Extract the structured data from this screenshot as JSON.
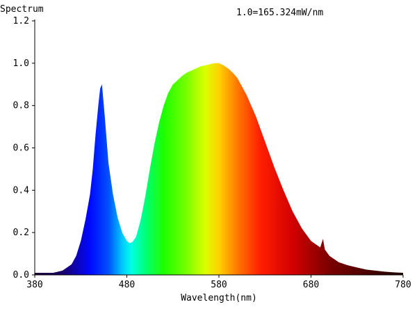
{
  "chart_data": {
    "type": "area",
    "ylabel": "Spectrum",
    "xlabel": "Wavelength(nm)",
    "annotation": "1.0=165.324mW/nm",
    "xlim": [
      380,
      780
    ],
    "ylim": [
      0,
      1.2
    ],
    "x_ticks": [
      "380",
      "480",
      "580",
      "680",
      "780"
    ],
    "y_ticks": [
      "0.0",
      "0.2",
      "0.4",
      "0.6",
      "0.8",
      "1.0",
      "1.2"
    ],
    "x_tick_values": [
      380,
      480,
      580,
      680,
      780
    ],
    "y_tick_values": [
      0,
      0.2,
      0.4,
      0.6,
      0.8,
      1.0,
      1.2
    ],
    "fill": "visible-spectrum rainbow gradient",
    "series": [
      {
        "x": [
          380,
          400,
          410,
          420,
          425,
          430,
          435,
          440,
          443,
          446,
          449,
          451,
          453,
          456,
          460,
          465,
          470,
          475,
          480,
          483,
          486,
          490,
          495,
          500,
          505,
          510,
          515,
          520,
          525,
          530,
          535,
          540,
          545,
          550,
          555,
          560,
          565,
          570,
          575,
          580,
          585,
          590,
          595,
          600,
          610,
          620,
          630,
          640,
          650,
          660,
          670,
          680,
          690,
          693,
          695,
          700,
          710,
          720,
          730,
          740,
          750,
          760,
          770,
          780
        ],
        "y": [
          0.01,
          0.01,
          0.02,
          0.05,
          0.09,
          0.16,
          0.26,
          0.38,
          0.5,
          0.66,
          0.8,
          0.88,
          0.9,
          0.75,
          0.53,
          0.38,
          0.27,
          0.2,
          0.16,
          0.15,
          0.155,
          0.18,
          0.26,
          0.37,
          0.5,
          0.62,
          0.72,
          0.8,
          0.86,
          0.9,
          0.92,
          0.94,
          0.955,
          0.965,
          0.975,
          0.985,
          0.99,
          0.995,
          1.0,
          1.0,
          0.99,
          0.975,
          0.955,
          0.93,
          0.85,
          0.75,
          0.63,
          0.51,
          0.4,
          0.3,
          0.22,
          0.16,
          0.13,
          0.17,
          0.12,
          0.09,
          0.06,
          0.045,
          0.035,
          0.025,
          0.02,
          0.015,
          0.012,
          0.01
        ]
      }
    ],
    "spectrum_colors": [
      {
        "wl": 380,
        "color": "#1c0038"
      },
      {
        "wl": 410,
        "color": "#1a0066"
      },
      {
        "wl": 440,
        "color": "#0008ff"
      },
      {
        "wl": 460,
        "color": "#0050ff"
      },
      {
        "wl": 475,
        "color": "#00c8ff"
      },
      {
        "wl": 485,
        "color": "#00ffe6"
      },
      {
        "wl": 500,
        "color": "#00ff78"
      },
      {
        "wl": 520,
        "color": "#1eff00"
      },
      {
        "wl": 545,
        "color": "#78ff00"
      },
      {
        "wl": 565,
        "color": "#dcff00"
      },
      {
        "wl": 580,
        "color": "#ffd200"
      },
      {
        "wl": 600,
        "color": "#ff7800"
      },
      {
        "wl": 625,
        "color": "#ff1e00"
      },
      {
        "wl": 660,
        "color": "#d20000"
      },
      {
        "wl": 700,
        "color": "#7a0000"
      },
      {
        "wl": 780,
        "color": "#1e0000"
      }
    ]
  }
}
